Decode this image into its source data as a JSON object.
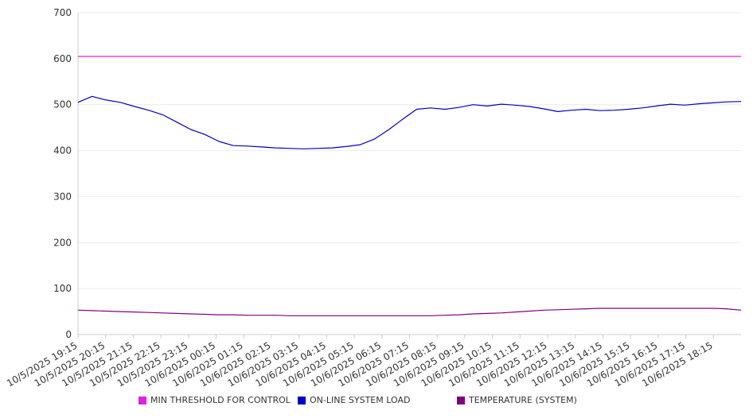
{
  "chart_data": {
    "type": "line",
    "title": "",
    "xlabel": "",
    "ylabel": "",
    "ylim": [
      0,
      700
    ],
    "yticks": [
      0,
      100,
      200,
      300,
      400,
      500,
      600,
      700
    ],
    "grid": true,
    "legend_position": "bottom",
    "xtick_labels": [
      "10/5/2025 19:15",
      "10/5/2025 20:15",
      "10/5/2025 21:15",
      "10/5/2025 22:15",
      "10/5/2025 23:15",
      "10/6/2025 00:15",
      "10/6/2025 01:15",
      "10/6/2025 02:15",
      "10/6/2025 03:15",
      "10/6/2025 04:15",
      "10/6/2025 05:15",
      "10/6/2025 06:15",
      "10/6/2025 07:15",
      "10/6/2025 08:15",
      "10/6/2025 09:15",
      "10/6/2025 10:15",
      "10/6/2025 11:15",
      "10/6/2025 12:15",
      "10/6/2025 13:15",
      "10/6/2025 14:15",
      "10/6/2025 15:15",
      "10/6/2025 16:15",
      "10/6/2025 17:15",
      "10/6/2025 18:15"
    ],
    "x": [
      "10/5/2025 19:15",
      "10/5/2025 19:45",
      "10/5/2025 20:15",
      "10/5/2025 20:45",
      "10/5/2025 21:15",
      "10/5/2025 21:45",
      "10/5/2025 22:15",
      "10/5/2025 22:45",
      "10/5/2025 23:15",
      "10/5/2025 23:45",
      "10/6/2025 00:15",
      "10/6/2025 00:45",
      "10/6/2025 01:15",
      "10/6/2025 01:45",
      "10/6/2025 02:15",
      "10/6/2025 02:45",
      "10/6/2025 03:15",
      "10/6/2025 03:45",
      "10/6/2025 04:15",
      "10/6/2025 04:45",
      "10/6/2025 05:15",
      "10/6/2025 05:45",
      "10/6/2025 06:15",
      "10/6/2025 06:45",
      "10/6/2025 07:15",
      "10/6/2025 07:45",
      "10/6/2025 08:15",
      "10/6/2025 08:45",
      "10/6/2025 09:15",
      "10/6/2025 09:45",
      "10/6/2025 10:15",
      "10/6/2025 10:45",
      "10/6/2025 11:15",
      "10/6/2025 11:45",
      "10/6/2025 12:15",
      "10/6/2025 12:45",
      "10/6/2025 13:15",
      "10/6/2025 13:45",
      "10/6/2025 14:15",
      "10/6/2025 14:45",
      "10/6/2025 15:15",
      "10/6/2025 15:45",
      "10/6/2025 16:15",
      "10/6/2025 16:45",
      "10/6/2025 17:15",
      "10/6/2025 17:45",
      "10/6/2025 18:15",
      "10/6/2025 18:45"
    ],
    "series": [
      {
        "name": "MIN THRESHOLD FOR CONTROL",
        "color": "#e020e0",
        "values": [
          605,
          605,
          605,
          605,
          605,
          605,
          605,
          605,
          605,
          605,
          605,
          605,
          605,
          605,
          605,
          605,
          605,
          605,
          605,
          605,
          605,
          605,
          605,
          605,
          605,
          605,
          605,
          605,
          605,
          605,
          605,
          605,
          605,
          605,
          605,
          605,
          605,
          605,
          605,
          605,
          605,
          605,
          605,
          605,
          605,
          605,
          605,
          605
        ]
      },
      {
        "name": "ON-LINE SYSTEM LOAD",
        "color": "#0000cc",
        "values": [
          505,
          518,
          510,
          505,
          496,
          488,
          478,
          462,
          446,
          435,
          420,
          411,
          410,
          408,
          406,
          405,
          404,
          405,
          406,
          409,
          413,
          425,
          445,
          468,
          490,
          493,
          490,
          494,
          500,
          497,
          501,
          499,
          496,
          491,
          485,
          488,
          490,
          487,
          488,
          490,
          493,
          497,
          501,
          499,
          502,
          504,
          506,
          507
        ]
      },
      {
        "name": "TEMPERATURE (SYSTEM)",
        "color": "#800080",
        "values": [
          53,
          52,
          51,
          50,
          49,
          48,
          47,
          46,
          45,
          44,
          43,
          43,
          42,
          42,
          42,
          41,
          41,
          41,
          41,
          41,
          41,
          41,
          41,
          41,
          41,
          41,
          42,
          43,
          45,
          46,
          47,
          49,
          51,
          53,
          54,
          55,
          56,
          57,
          57,
          57,
          57,
          57,
          57,
          57,
          57,
          57,
          56,
          53
        ]
      }
    ]
  }
}
